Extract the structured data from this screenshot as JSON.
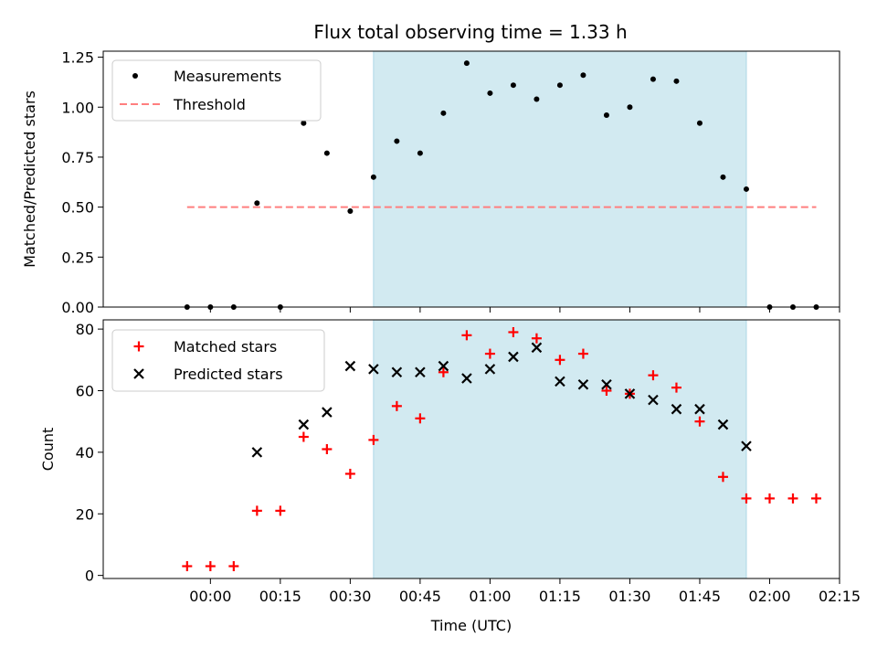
{
  "chart_data": [
    {
      "type": "scatter",
      "title": "Flux total observing time = 1.33 h",
      "xlabel": "",
      "ylabel": "Matched/Predicted stars",
      "ylim": [
        0,
        1.28
      ],
      "yticks": [
        "0.00",
        "0.25",
        "0.50",
        "0.75",
        "1.00",
        "1.25"
      ],
      "x_unit": "minutes since 00:00 UTC",
      "xlim": [
        -23,
        135
      ],
      "shaded_range": [
        35,
        115
      ],
      "shade_color": "#add8e6",
      "legend_position": "upper-left",
      "series": [
        {
          "name": "Measurements",
          "color": "#000000",
          "x": [
            -5,
            0,
            5,
            10,
            15,
            20,
            25,
            30,
            35,
            40,
            45,
            50,
            55,
            60,
            65,
            70,
            75,
            80,
            85,
            90,
            95,
            100,
            105,
            110,
            115,
            120,
            125,
            130
          ],
          "y": [
            0.0,
            0.0,
            0.0,
            0.52,
            0.0,
            0.92,
            0.77,
            0.48,
            0.65,
            0.83,
            0.77,
            0.97,
            1.22,
            1.07,
            1.11,
            1.04,
            1.11,
            1.16,
            0.96,
            1.0,
            1.14,
            1.13,
            0.92,
            0.65,
            0.59,
            0.0,
            0.0,
            0.0
          ]
        },
        {
          "name": "Threshold",
          "color": "#ff7f7f",
          "x": [
            -5,
            130
          ],
          "y": [
            0.5,
            0.5
          ]
        }
      ]
    },
    {
      "type": "scatter",
      "title": "",
      "xlabel": "Time (UTC)",
      "ylabel": "Count",
      "ylim": [
        -1,
        83
      ],
      "yticks": [
        "0",
        "20",
        "40",
        "60",
        "80"
      ],
      "x_unit": "minutes since 00:00 UTC",
      "xlim": [
        -23,
        135
      ],
      "xticks": [
        0,
        15,
        30,
        45,
        60,
        75,
        90,
        105,
        120,
        135
      ],
      "xtick_labels": [
        "00:00",
        "00:15",
        "00:30",
        "00:45",
        "01:00",
        "01:15",
        "01:30",
        "01:45",
        "02:00",
        "02:15"
      ],
      "shaded_range": [
        35,
        115
      ],
      "shade_color": "#add8e6",
      "legend_position": "upper-left",
      "series": [
        {
          "name": "Matched stars",
          "color": "#ff0000",
          "marker": "plus",
          "x": [
            -5,
            0,
            5,
            10,
            15,
            20,
            25,
            30,
            35,
            40,
            45,
            50,
            55,
            60,
            65,
            70,
            75,
            80,
            85,
            90,
            95,
            100,
            105,
            110,
            115,
            120,
            125,
            130
          ],
          "y": [
            3,
            3,
            3,
            21,
            21,
            45,
            41,
            33,
            44,
            55,
            51,
            66,
            78,
            72,
            79,
            77,
            70,
            72,
            60,
            59,
            65,
            61,
            50,
            32,
            25,
            25,
            25,
            25
          ]
        },
        {
          "name": "Predicted stars",
          "color": "#000000",
          "marker": "x",
          "x": [
            10,
            20,
            25,
            30,
            35,
            40,
            45,
            50,
            55,
            60,
            65,
            70,
            75,
            80,
            85,
            90,
            95,
            100,
            105,
            110,
            115
          ],
          "y": [
            40,
            49,
            53,
            68,
            67,
            66,
            66,
            68,
            64,
            67,
            71,
            74,
            63,
            62,
            62,
            59,
            57,
            54,
            54,
            49,
            42
          ]
        }
      ]
    }
  ]
}
